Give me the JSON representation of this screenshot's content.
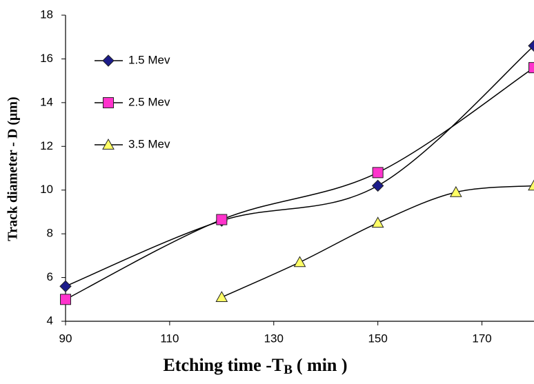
{
  "chart_data": {
    "type": "line",
    "x_label": "Etching time -T",
    "x_label_sub": "B",
    "x_label_unit": "( min )",
    "y_label": "Track diameter  - D (μm)",
    "xlim": [
      90,
      180
    ],
    "xticks": [
      90,
      110,
      130,
      150,
      170
    ],
    "ylim": [
      4,
      18
    ],
    "yticks": [
      4,
      6,
      8,
      10,
      12,
      14,
      16,
      18
    ],
    "legend": "upper left",
    "smooth": true,
    "series": [
      {
        "name": "1.5 Mev",
        "color": "#1c1c8a",
        "marker": "diamond",
        "x": [
          90,
          120,
          150,
          180
        ],
        "values": [
          5.6,
          8.6,
          10.2,
          16.6
        ]
      },
      {
        "name": "2.5 Mev",
        "color": "#ff33cc",
        "marker": "square",
        "x": [
          90,
          120,
          150,
          180
        ],
        "values": [
          5.0,
          8.65,
          10.8,
          15.6
        ]
      },
      {
        "name": "3.5 Mev",
        "color": "#ffff66",
        "marker": "triangle",
        "x": [
          120,
          135,
          150,
          165,
          180
        ],
        "values": [
          5.1,
          6.7,
          8.5,
          9.9,
          10.2
        ]
      }
    ]
  }
}
